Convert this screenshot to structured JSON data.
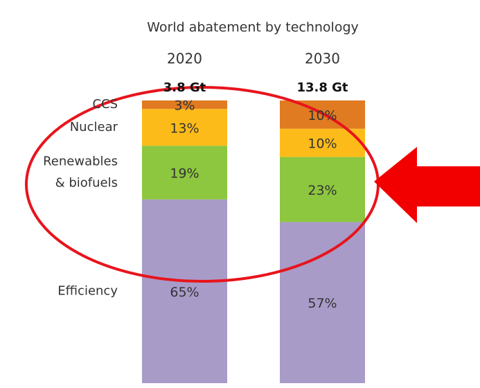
{
  "chart_data": {
    "type": "stacked_bar_100",
    "title": "World abatement by technology",
    "categories": [
      "2020",
      "2030"
    ],
    "totals": [
      "3.8 Gt",
      "13.8 Gt"
    ],
    "ylim": [
      0,
      100
    ],
    "series": [
      {
        "name": "Efficiency",
        "color": "#a99bc8",
        "values": [
          65,
          57
        ],
        "value_labels": [
          "65%",
          "57%"
        ]
      },
      {
        "name": "Renewables & biofuels",
        "color": "#8dc63f",
        "values": [
          19,
          23
        ],
        "value_labels": [
          "19%",
          "23%"
        ]
      },
      {
        "name": "Nuclear",
        "color": "#fdbb1a",
        "values": [
          13,
          10
        ],
        "value_labels": [
          "13%",
          "10%"
        ]
      },
      {
        "name": "CCS",
        "color": "#e07b21",
        "values": [
          3,
          10
        ],
        "value_labels": [
          "3%",
          "10%"
        ]
      }
    ]
  }
}
